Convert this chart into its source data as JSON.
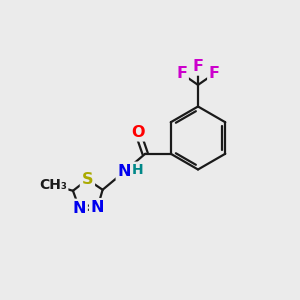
{
  "bg_color": "#ebebeb",
  "bond_color": "#1a1a1a",
  "bond_width": 1.6,
  "atom_colors": {
    "O": "#ff0000",
    "N": "#0000ee",
    "S": "#aaaa00",
    "F": "#cc00cc",
    "H": "#008888",
    "C": "#1a1a1a"
  },
  "font_size": 11.5,
  "font_size_h": 10.0,
  "font_size_me": 10.0
}
